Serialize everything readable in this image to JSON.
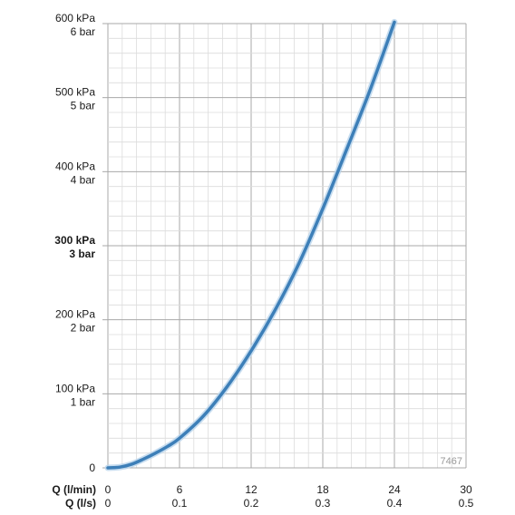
{
  "chart_data": {
    "type": "line",
    "x_axis_primary": {
      "label": "Q (l/min)",
      "ticks": [
        "0",
        "6",
        "12",
        "18",
        "24",
        "30"
      ],
      "range": [
        0,
        30
      ],
      "minor_divisions": 5
    },
    "x_axis_secondary": {
      "label": "Q (l/s)",
      "ticks": [
        "0",
        "0.1",
        "0.2",
        "0.3",
        "0.4",
        "0.5"
      ],
      "range": [
        0,
        0.5
      ]
    },
    "y_axis": {
      "ticks": [
        {
          "value": 0,
          "kpa": "0",
          "bar": "",
          "bold": false
        },
        {
          "value": 100,
          "kpa": "100 kPa",
          "bar": "1 bar",
          "bold": false
        },
        {
          "value": 200,
          "kpa": "200 kPa",
          "bar": "2 bar",
          "bold": false
        },
        {
          "value": 300,
          "kpa": "300 kPa",
          "bar": "3 bar",
          "bold": true
        },
        {
          "value": 400,
          "kpa": "400 kPa",
          "bar": "4 bar",
          "bold": false
        },
        {
          "value": 500,
          "kpa": "500 kPa",
          "bar": "5 bar",
          "bold": false
        },
        {
          "value": 600,
          "kpa": "600 kPa",
          "bar": "6 bar",
          "bold": false
        }
      ],
      "range": [
        0,
        600
      ],
      "minor_divisions": 5
    },
    "grid": true,
    "series": [
      {
        "color": "#3d7fb8",
        "x": [
          0,
          1,
          2,
          3,
          4,
          5,
          6,
          8,
          10,
          12,
          14,
          16,
          18,
          20,
          22,
          24
        ],
        "y": [
          0,
          1,
          5,
          12,
          20,
          29,
          40,
          70,
          110,
          158,
          213,
          276,
          350,
          430,
          512,
          602
        ]
      }
    ]
  },
  "watermark": "7467"
}
